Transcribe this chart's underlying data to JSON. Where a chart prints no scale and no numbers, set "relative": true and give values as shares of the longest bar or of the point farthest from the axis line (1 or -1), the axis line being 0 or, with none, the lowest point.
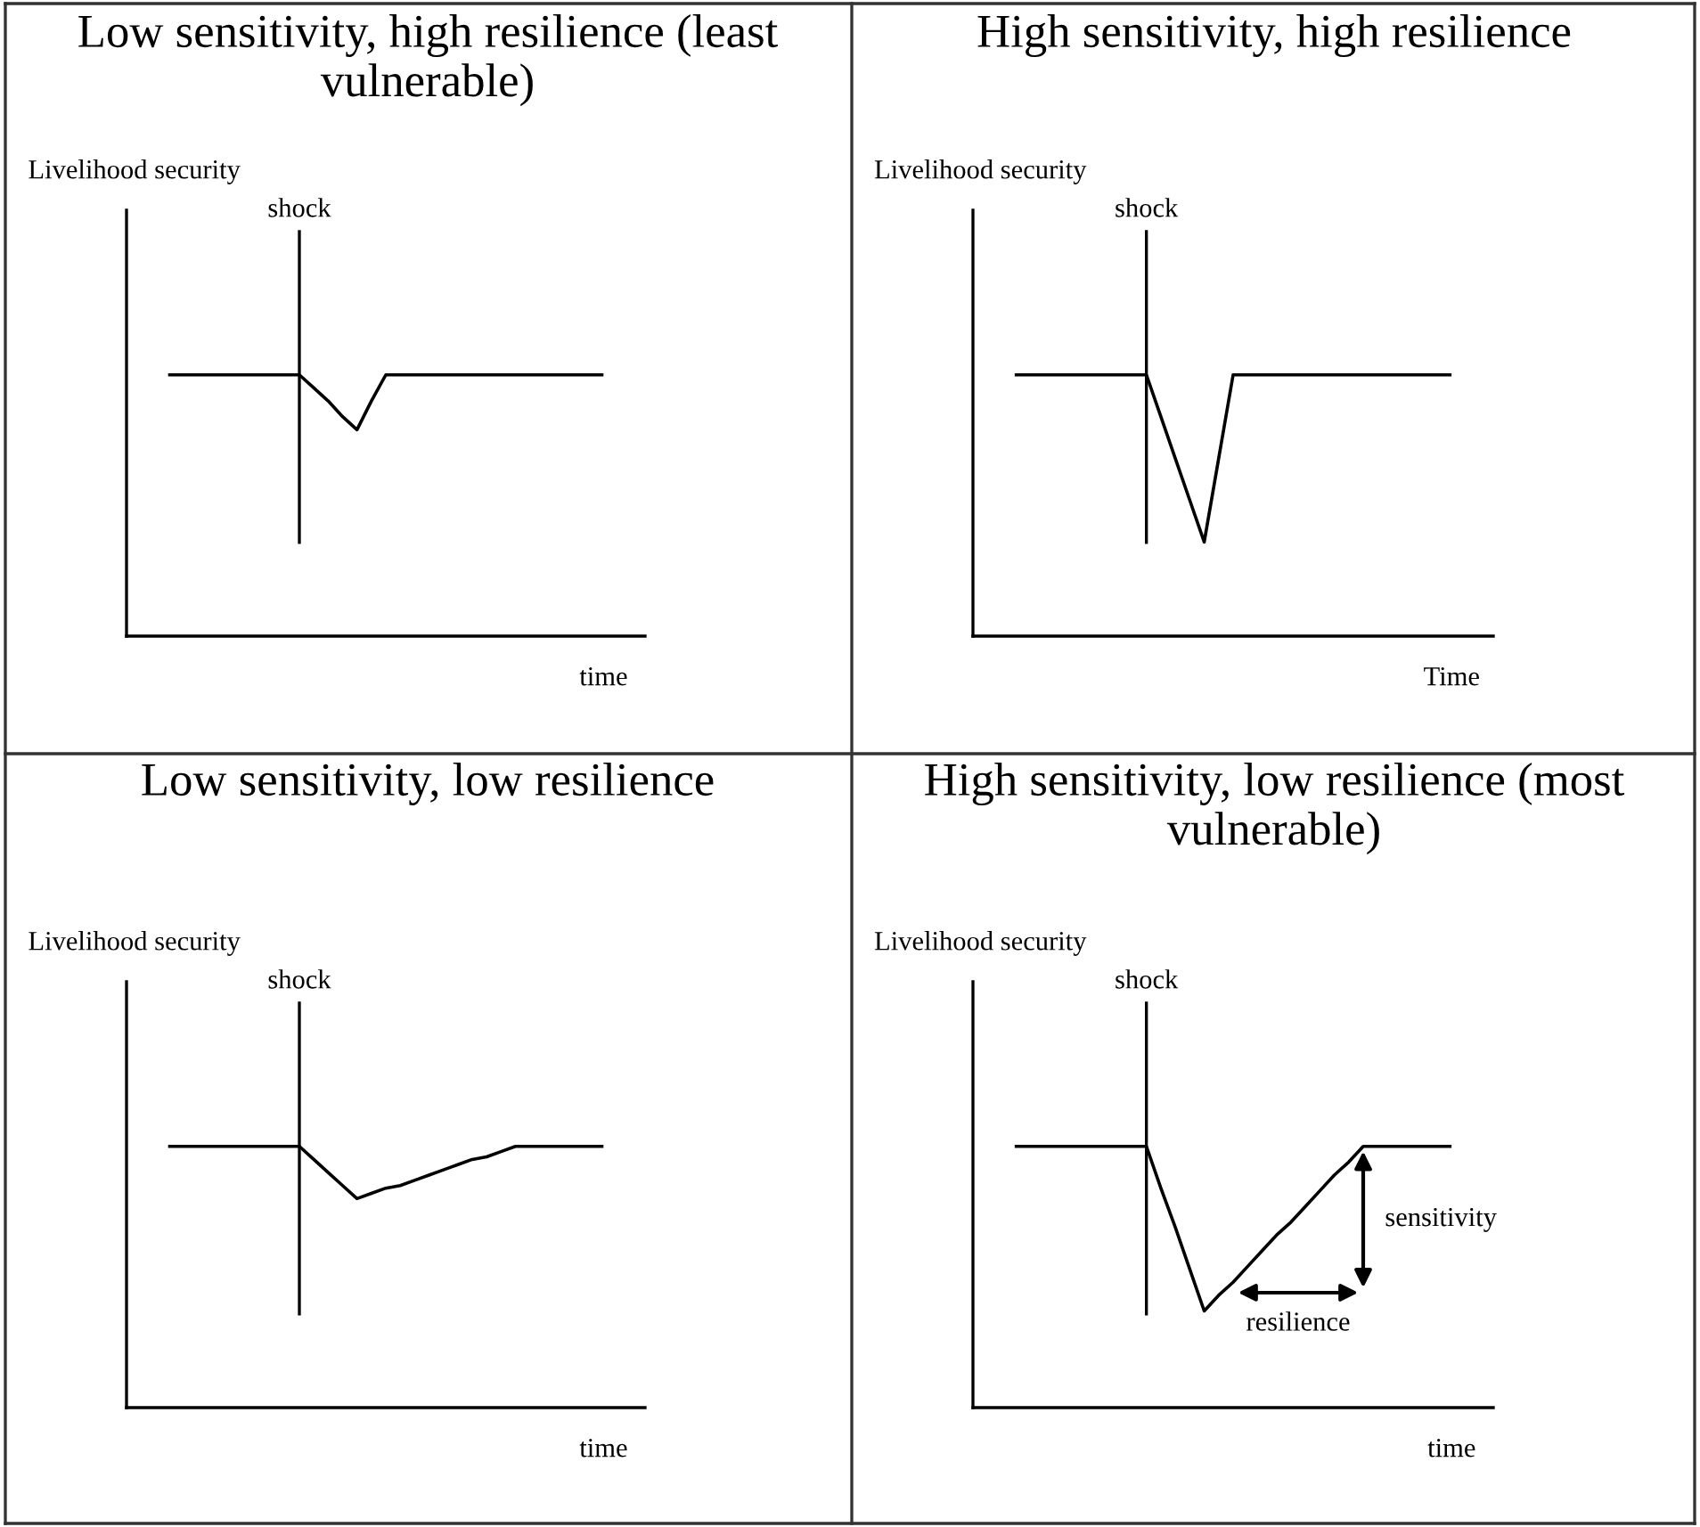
{
  "chart_data": [
    {
      "type": "line",
      "title": "Low sensitivity, high resilience (least vulnerable)",
      "ylabel": "Livelihood security",
      "xlabel": "time",
      "relative": true,
      "categories": [
        null,
        null,
        null,
        null,
        null,
        null,
        null,
        null,
        null,
        null,
        null,
        null,
        null,
        null,
        null,
        null,
        null,
        null,
        null,
        null,
        null,
        null,
        null,
        null,
        null,
        null,
        null,
        null,
        null,
        null,
        null,
        null,
        null,
        null,
        null,
        null,
        null
      ],
      "series": [
        {
          "color": "#000000",
          "values": [
            null,
            null,
            null,
            1,
            1,
            1,
            1,
            1,
            1,
            1,
            1,
            1,
            1,
            0.95,
            0.9,
            0.84,
            0.79,
            0.9,
            1,
            1,
            1,
            1,
            1,
            1,
            1,
            1,
            1,
            1,
            1,
            1,
            1,
            1,
            1,
            1,
            null,
            null,
            null
          ]
        }
      ],
      "annotations": [
        "shock"
      ]
    },
    {
      "type": "line",
      "title": "High sensitivity, high resilience",
      "ylabel": "Livelihood security",
      "xlabel": "Time",
      "relative": true,
      "categories": [
        null,
        null,
        null,
        null,
        null,
        null,
        null,
        null,
        null,
        null,
        null,
        null,
        null,
        null,
        null,
        null,
        null,
        null,
        null,
        null,
        null,
        null,
        null,
        null,
        null,
        null,
        null,
        null,
        null,
        null,
        null,
        null,
        null,
        null,
        null,
        null,
        null
      ],
      "series": [
        {
          "color": "#000000",
          "values": [
            null,
            null,
            null,
            1,
            1,
            1,
            1,
            1,
            1,
            1,
            1,
            1,
            1,
            0.84,
            0.68,
            0.52,
            0.36,
            0.68,
            1,
            1,
            1,
            1,
            1,
            1,
            1,
            1,
            1,
            1,
            1,
            1,
            1,
            1,
            1,
            1,
            null,
            null,
            null
          ]
        }
      ],
      "annotations": [
        "shock"
      ]
    },
    {
      "type": "line",
      "title": "Low sensitivity, low resilience",
      "ylabel": "Livelihood security",
      "xlabel": "time",
      "relative": true,
      "categories": [
        null,
        null,
        null,
        null,
        null,
        null,
        null,
        null,
        null,
        null,
        null,
        null,
        null,
        null,
        null,
        null,
        null,
        null,
        null,
        null,
        null,
        null,
        null,
        null,
        null,
        null,
        null,
        null,
        null,
        null,
        null,
        null,
        null,
        null,
        null,
        null,
        null
      ],
      "series": [
        {
          "color": "#000000",
          "values": [
            null,
            null,
            null,
            1,
            1,
            1,
            1,
            1,
            1,
            1,
            1,
            1,
            1,
            0.95,
            0.9,
            0.85,
            0.8,
            0.82,
            0.84,
            0.85,
            0.87,
            0.89,
            0.91,
            0.93,
            0.95,
            0.96,
            0.98,
            1,
            1,
            1,
            1,
            1,
            1,
            1,
            null,
            null,
            null
          ]
        }
      ],
      "annotations": [
        "shock"
      ]
    },
    {
      "type": "line",
      "title": "High sensitivity, low resilience (most vulnerable)",
      "ylabel": "Livelihood security",
      "xlabel": "time",
      "relative": true,
      "categories": [
        null,
        null,
        null,
        null,
        null,
        null,
        null,
        null,
        null,
        null,
        null,
        null,
        null,
        null,
        null,
        null,
        null,
        null,
        null,
        null,
        null,
        null,
        null,
        null,
        null,
        null,
        null,
        null,
        null,
        null,
        null,
        null,
        null,
        null,
        null,
        null,
        null
      ],
      "series": [
        {
          "color": "#000000",
          "values": [
            null,
            null,
            null,
            1,
            1,
            1,
            1,
            1,
            1,
            1,
            1,
            1,
            1,
            0.84,
            0.69,
            0.53,
            0.37,
            0.43,
            0.48,
            0.54,
            0.6,
            0.66,
            0.71,
            0.77,
            0.83,
            0.89,
            0.94,
            1,
            1,
            1,
            1,
            1,
            1,
            1,
            null,
            null,
            null
          ]
        }
      ],
      "annotations": [
        "shock",
        "sensitivity",
        "resilience"
      ]
    }
  ]
}
